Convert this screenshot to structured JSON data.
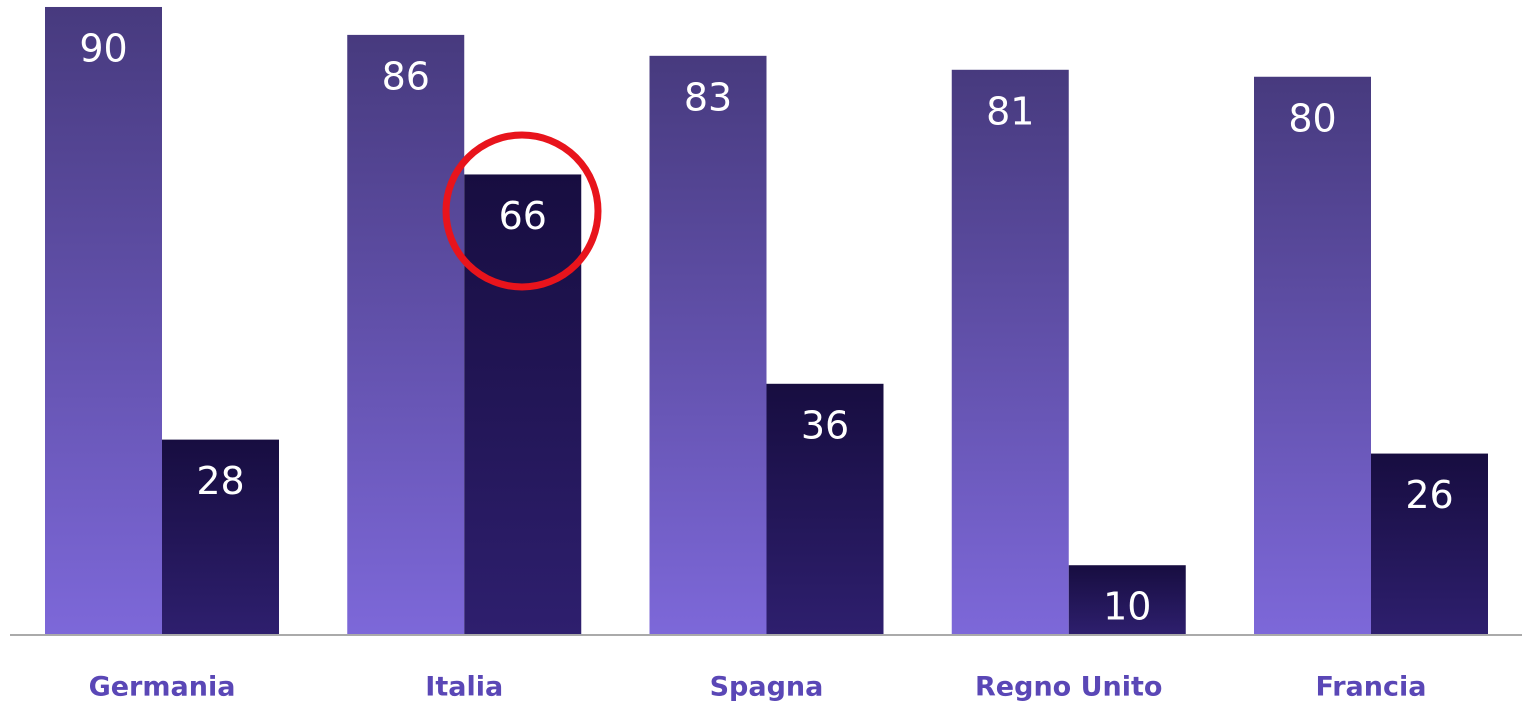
{
  "chart_data": {
    "type": "bar",
    "categories": [
      "Germania",
      "Italia",
      "Spagna",
      "Regno Unito",
      "Francia"
    ],
    "series": [
      {
        "colors": [
          "#473a7e",
          "#7d68d9"
        ],
        "values": [
          90,
          86,
          83,
          81,
          80
        ]
      },
      {
        "colors": [
          "#170d40",
          "#2e1f6e"
        ],
        "values": [
          28,
          66,
          36,
          10,
          26
        ]
      }
    ],
    "ylim": [
      0,
      91
    ]
  }
}
